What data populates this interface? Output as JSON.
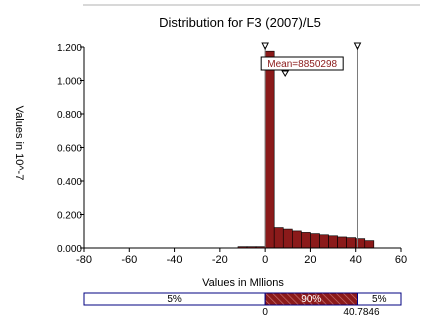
{
  "chart_data": {
    "type": "bar",
    "title": "Distribution for F3 (2007)/L5",
    "xlabel": "Values in Mllions",
    "ylabel": "Values in 10^-7",
    "xlim": [
      -80,
      60
    ],
    "ylim": [
      0,
      1.2
    ],
    "x_ticks": [
      "-80",
      "-60",
      "-40",
      "-20",
      "0",
      "20",
      "40",
      "60"
    ],
    "y_ticks": [
      "0.000",
      "0.200",
      "0.400",
      "0.600",
      "0.800",
      "1.000",
      "1.200"
    ],
    "bin_width": 4.0,
    "bins": [
      {
        "start": -12,
        "value": 0.008
      },
      {
        "start": -8,
        "value": 0.008
      },
      {
        "start": -4,
        "value": 0.008
      },
      {
        "start": 0,
        "value": 1.175
      },
      {
        "start": 4,
        "value": 0.122
      },
      {
        "start": 8,
        "value": 0.113
      },
      {
        "start": 12,
        "value": 0.102
      },
      {
        "start": 16,
        "value": 0.093
      },
      {
        "start": 20,
        "value": 0.086
      },
      {
        "start": 24,
        "value": 0.079
      },
      {
        "start": 28,
        "value": 0.073
      },
      {
        "start": 32,
        "value": 0.066
      },
      {
        "start": 36,
        "value": 0.062
      },
      {
        "start": 40,
        "value": 0.056
      },
      {
        "start": 44,
        "value": 0.044
      }
    ],
    "markers": [
      {
        "x": 0
      },
      {
        "x": 40.7846
      }
    ],
    "mean": {
      "x": 8.850298,
      "label": "Mean=8850298"
    },
    "percentile_bar": {
      "left_label": "5%",
      "middle_label": "90%",
      "right_label": "5%",
      "low_value": "0",
      "high_value": "40.7846"
    },
    "colors": {
      "bar_fill": "#8b1a1a",
      "bar_stroke": "#000000",
      "axis": "#000000",
      "marker_line": "#7a7a7a",
      "mean_label": "#8b1a1a",
      "middle_band": "#8b1a1a",
      "band_border": "#000080"
    }
  }
}
